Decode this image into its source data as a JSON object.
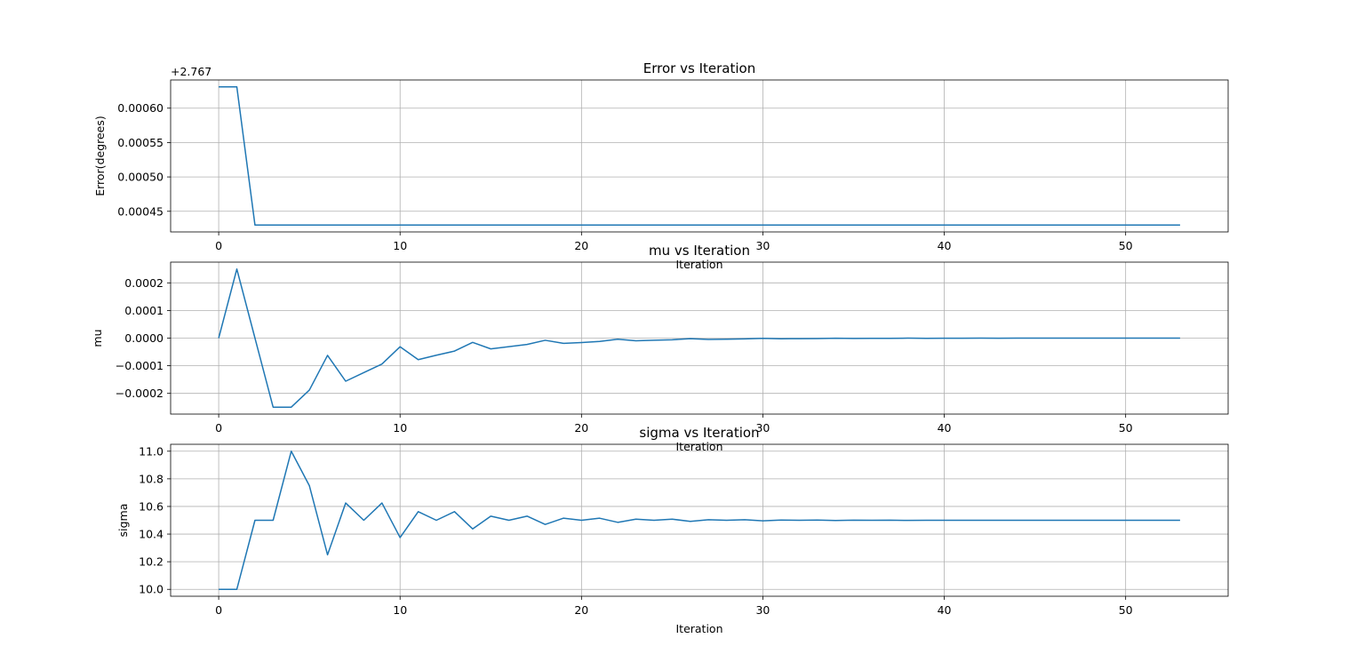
{
  "chart_data": [
    {
      "type": "line",
      "title": "Error vs Iteration",
      "xlabel": "Iteration",
      "ylabel": "Error(degrees)",
      "offset_label": "+2.767",
      "xlim": [
        -2.65,
        55.65
      ],
      "ylim": [
        0.00042,
        0.000641
      ],
      "xticks": [
        0,
        10,
        20,
        30,
        40,
        50
      ],
      "yticks": [
        0.00045,
        0.0005,
        0.00055,
        0.0006
      ],
      "ytick_labels": [
        "0.00045",
        "0.00050",
        "0.00055",
        "0.00060"
      ],
      "grid": true,
      "color": "#1f77b4",
      "x": [
        0,
        1,
        2,
        3,
        4,
        5,
        6,
        7,
        8,
        9,
        10,
        11,
        12,
        13,
        14,
        15,
        16,
        17,
        18,
        19,
        20,
        21,
        22,
        23,
        24,
        25,
        26,
        27,
        28,
        29,
        30,
        31,
        32,
        33,
        34,
        35,
        36,
        37,
        38,
        39,
        40,
        41,
        42,
        43,
        44,
        45,
        46,
        47,
        48,
        49,
        50,
        51,
        52,
        53
      ],
      "y": [
        0.000631,
        0.000631,
        0.00043,
        0.00043,
        0.00043,
        0.00043,
        0.00043,
        0.00043,
        0.00043,
        0.00043,
        0.00043,
        0.00043,
        0.00043,
        0.00043,
        0.00043,
        0.00043,
        0.00043,
        0.00043,
        0.00043,
        0.00043,
        0.00043,
        0.00043,
        0.00043,
        0.00043,
        0.00043,
        0.00043,
        0.00043,
        0.00043,
        0.00043,
        0.00043,
        0.00043,
        0.00043,
        0.00043,
        0.00043,
        0.00043,
        0.00043,
        0.00043,
        0.00043,
        0.00043,
        0.00043,
        0.00043,
        0.00043,
        0.00043,
        0.00043,
        0.00043,
        0.00043,
        0.00043,
        0.00043,
        0.00043,
        0.00043,
        0.00043,
        0.00043,
        0.00043,
        0.00043
      ]
    },
    {
      "type": "line",
      "title": "mu vs Iteration",
      "xlabel": "Iteration",
      "ylabel": "mu",
      "xlim": [
        -2.65,
        55.65
      ],
      "ylim": [
        -0.000275,
        0.000275
      ],
      "xticks": [
        0,
        10,
        20,
        30,
        40,
        50
      ],
      "yticks": [
        -0.0002,
        -0.0001,
        0.0,
        0.0001,
        0.0002
      ],
      "ytick_labels": [
        "−0.0002",
        "−0.0001",
        "0.0000",
        "0.0001",
        "0.0002"
      ],
      "grid": true,
      "color": "#1f77b4",
      "x": [
        0,
        1,
        2,
        3,
        4,
        5,
        6,
        7,
        8,
        9,
        10,
        11,
        12,
        13,
        14,
        15,
        16,
        17,
        18,
        19,
        20,
        21,
        22,
        23,
        24,
        25,
        26,
        27,
        28,
        29,
        30,
        31,
        32,
        33,
        34,
        35,
        36,
        37,
        38,
        39,
        40,
        41,
        42,
        43,
        44,
        45,
        46,
        47,
        48,
        49,
        50,
        51,
        52,
        53
      ],
      "y": [
        0.0,
        0.00025,
        0.0,
        -0.00025,
        -0.00025,
        -0.000188,
        -6.25e-05,
        -0.000156,
        -0.000125,
        -9.38e-05,
        -3.13e-05,
        -7.8e-05,
        -6.2e-05,
        -4.7e-05,
        -1.56e-05,
        -3.9e-05,
        -3.1e-05,
        -2.3e-05,
        -7.8e-06,
        -1.9e-05,
        -1.6e-05,
        -1.2e-05,
        -3.9e-06,
        -9.8e-06,
        -7.8e-06,
        -5.9e-06,
        -2e-06,
        -4.9e-06,
        -3.9e-06,
        -2.9e-06,
        -1e-06,
        -2.4e-06,
        -2e-06,
        -1.5e-06,
        -5e-07,
        -1.2e-06,
        -1e-06,
        -7e-07,
        -2e-07,
        -6e-07,
        -5e-07,
        -4e-07,
        -1e-07,
        -3e-07,
        -2e-07,
        -2e-07,
        -1e-07,
        -1e-07,
        -1e-07,
        -1e-07,
        0.0,
        -1e-07,
        0.0,
        0.0
      ]
    },
    {
      "type": "line",
      "title": "sigma vs Iteration",
      "xlabel": "Iteration",
      "ylabel": "sigma",
      "xlim": [
        -2.65,
        55.65
      ],
      "ylim": [
        9.95,
        11.05
      ],
      "xticks": [
        0,
        10,
        20,
        30,
        40,
        50
      ],
      "yticks": [
        10.0,
        10.2,
        10.4,
        10.6,
        10.8,
        11.0
      ],
      "ytick_labels": [
        "10.0",
        "10.2",
        "10.4",
        "10.6",
        "10.8",
        "11.0"
      ],
      "grid": true,
      "color": "#1f77b4",
      "x": [
        0,
        1,
        2,
        3,
        4,
        5,
        6,
        7,
        8,
        9,
        10,
        11,
        12,
        13,
        14,
        15,
        16,
        17,
        18,
        19,
        20,
        21,
        22,
        23,
        24,
        25,
        26,
        27,
        28,
        29,
        30,
        31,
        32,
        33,
        34,
        35,
        36,
        37,
        38,
        39,
        40,
        41,
        42,
        43,
        44,
        45,
        46,
        47,
        48,
        49,
        50,
        51,
        52,
        53
      ],
      "y": [
        10.0,
        10.0,
        10.5,
        10.5,
        11.0,
        10.75,
        10.25,
        10.625,
        10.5,
        10.625,
        10.375,
        10.5625,
        10.5,
        10.5625,
        10.4375,
        10.53,
        10.5,
        10.53,
        10.47,
        10.515,
        10.5,
        10.515,
        10.485,
        10.508,
        10.5,
        10.508,
        10.492,
        10.504,
        10.5,
        10.504,
        10.496,
        10.502,
        10.5,
        10.502,
        10.498,
        10.501,
        10.5,
        10.501,
        10.499,
        10.5,
        10.5,
        10.5,
        10.5,
        10.5,
        10.5,
        10.5,
        10.5,
        10.5,
        10.5,
        10.5,
        10.5,
        10.5,
        10.5,
        10.5
      ]
    }
  ]
}
